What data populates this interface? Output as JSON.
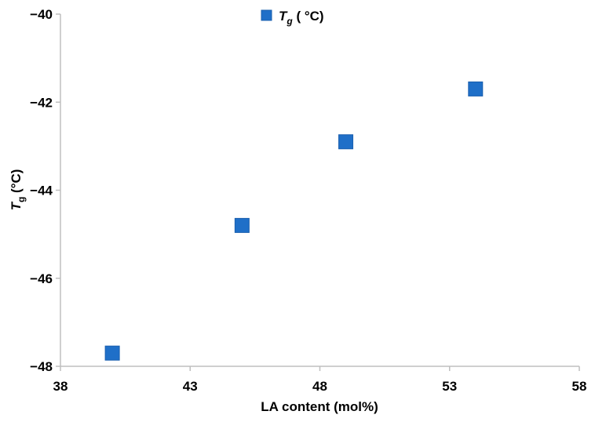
{
  "chart_data": {
    "type": "scatter",
    "xlabel": "LA content (mol%)",
    "ylabel_main": "T",
    "ylabel_sub": "g",
    "ylabel_unit": " (°C)",
    "xlim": [
      38,
      58
    ],
    "ylim": [
      -48,
      -40
    ],
    "x_ticks": [
      38,
      43,
      48,
      53,
      58
    ],
    "y_ticks": [
      -48,
      -46,
      -44,
      -42,
      -40
    ],
    "x_tick_labels": [
      "38",
      "43",
      "48",
      "53",
      "58"
    ],
    "y_tick_labels": [
      "−48",
      "−46",
      "−44",
      "−42",
      "−40"
    ],
    "grid": false,
    "legend_position": "top-center",
    "series": [
      {
        "legend_main": "T",
        "legend_sub": "g",
        "legend_unit": " ( °C)",
        "color": "#1f6fc8",
        "edge_color": "#1a5fae",
        "marker": "square",
        "points": [
          {
            "x": 40,
            "y": -47.7
          },
          {
            "x": 45,
            "y": -44.8
          },
          {
            "x": 49,
            "y": -42.9
          },
          {
            "x": 54,
            "y": -41.7
          }
        ]
      }
    ]
  }
}
